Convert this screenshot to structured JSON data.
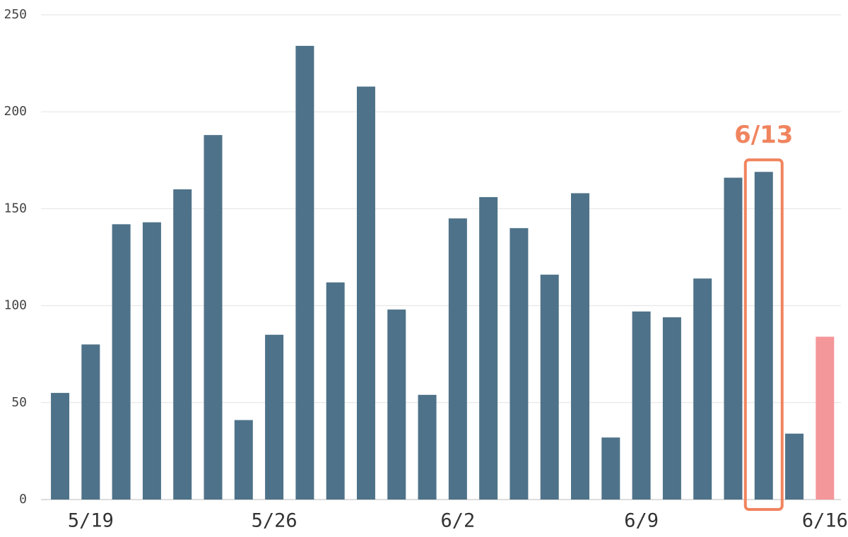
{
  "chart_data": {
    "type": "bar",
    "categories": [
      null,
      "5/19",
      null,
      null,
      null,
      null,
      null,
      "5/26",
      null,
      null,
      null,
      null,
      null,
      "6/2",
      null,
      null,
      null,
      null,
      null,
      "6/9",
      null,
      null,
      null,
      null,
      null,
      "6/16"
    ],
    "values": [
      55,
      80,
      142,
      143,
      160,
      188,
      41,
      85,
      234,
      112,
      213,
      98,
      54,
      145,
      156,
      140,
      116,
      158,
      32,
      97,
      94,
      114,
      166,
      169,
      34,
      84
    ],
    "colors": [
      "#4e7289",
      "#4e7289",
      "#4e7289",
      "#4e7289",
      "#4e7289",
      "#4e7289",
      "#4e7289",
      "#4e7289",
      "#4e7289",
      "#4e7289",
      "#4e7289",
      "#4e7289",
      "#4e7289",
      "#4e7289",
      "#4e7289",
      "#4e7289",
      "#4e7289",
      "#4e7289",
      "#4e7289",
      "#4e7289",
      "#4e7289",
      "#4e7289",
      "#4e7289",
      "#4e7289",
      "#4e7289",
      "#f4979a"
    ],
    "ylim": [
      0,
      250
    ],
    "yticks": [
      0,
      50,
      100,
      150,
      200,
      250
    ],
    "grid": true,
    "annotation": {
      "text": "6/13",
      "highlight_index": 23,
      "color": "#f0845e"
    }
  }
}
